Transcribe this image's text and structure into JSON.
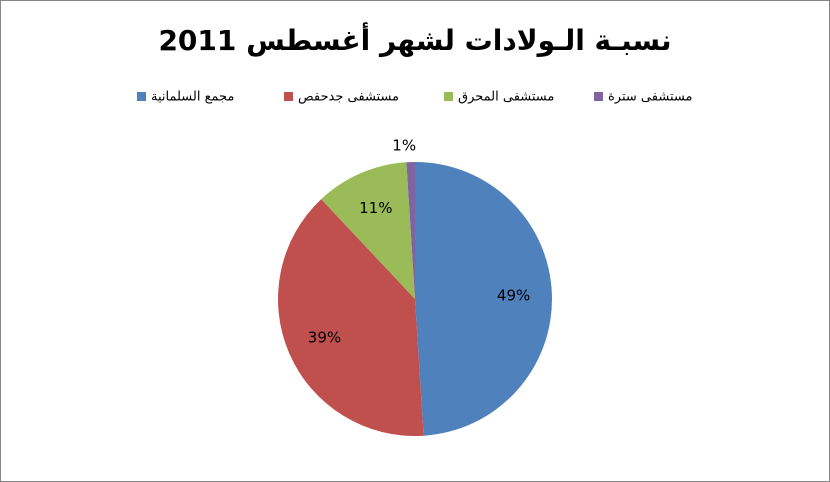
{
  "chart_data": {
    "type": "pie",
    "title": "نسبـة الـولادات لشهر أغسطس 2011",
    "categories": [
      "مجمع السلمانية",
      "مستشفى جدحفص",
      "مستشفى المحرق",
      "مستشفى سترة"
    ],
    "values": [
      49,
      39,
      11,
      1
    ],
    "value_labels": [
      "49%",
      "39%",
      "11%",
      "1%"
    ],
    "colors": [
      "#4f81bd",
      "#c0504d",
      "#9bbb59",
      "#8064a2"
    ],
    "legend": "top"
  }
}
